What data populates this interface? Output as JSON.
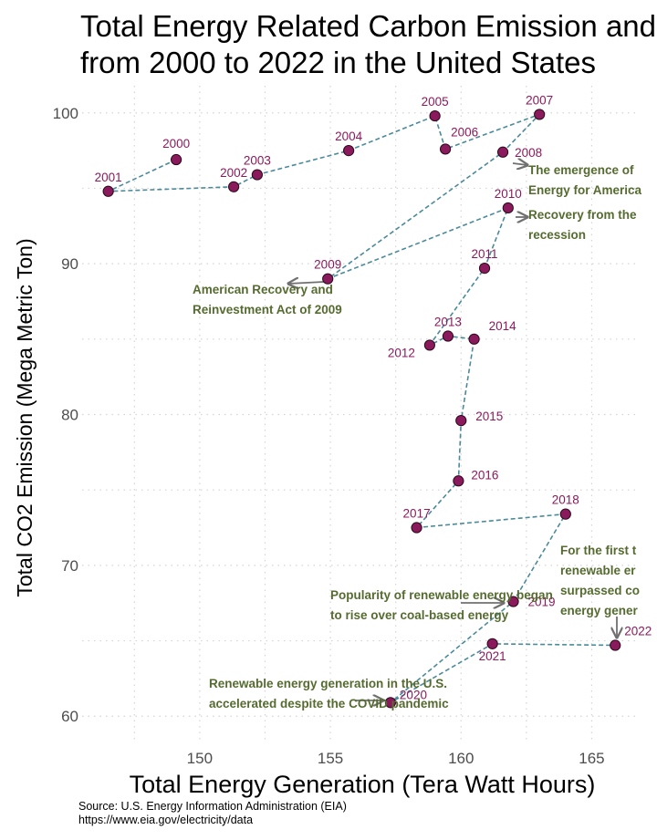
{
  "chart_data": {
    "type": "scatter",
    "title_lines": [
      "Total Energy Related Carbon Emission and Energy Generation",
      "from 2000 to 2022 in the United States"
    ],
    "xlabel": "Total Energy Generation (Tera Watt Hours)",
    "ylabel": "Total CO2 Emission (Mega Metric Ton)",
    "xlim": [
      145.5,
      166.8
    ],
    "ylim": [
      58.2,
      101.8
    ],
    "xticks": [
      150,
      155,
      160,
      165
    ],
    "yticks": [
      60,
      70,
      80,
      90,
      100
    ],
    "grid": true,
    "connected_path": true,
    "colors": {
      "point": "#8b1a5c",
      "line": "#4a8a9a",
      "annotation": "#556b2f",
      "arrow": "#707070"
    },
    "points": [
      {
        "year": "2000",
        "x": 149.1,
        "y": 96.9
      },
      {
        "year": "2001",
        "x": 146.5,
        "y": 94.8
      },
      {
        "year": "2002",
        "x": 151.3,
        "y": 95.1
      },
      {
        "year": "2003",
        "x": 152.2,
        "y": 95.9
      },
      {
        "year": "2004",
        "x": 155.7,
        "y": 97.5
      },
      {
        "year": "2005",
        "x": 159.0,
        "y": 99.8
      },
      {
        "year": "2006",
        "x": 159.4,
        "y": 97.6
      },
      {
        "year": "2007",
        "x": 163.0,
        "y": 99.9
      },
      {
        "year": "2008",
        "x": 161.6,
        "y": 97.4
      },
      {
        "year": "2009",
        "x": 154.9,
        "y": 89.0
      },
      {
        "year": "2010",
        "x": 161.8,
        "y": 93.7
      },
      {
        "year": "2011",
        "x": 160.9,
        "y": 89.7
      },
      {
        "year": "2012",
        "x": 158.8,
        "y": 84.6
      },
      {
        "year": "2013",
        "x": 159.5,
        "y": 85.2
      },
      {
        "year": "2014",
        "x": 160.5,
        "y": 85.0
      },
      {
        "year": "2015",
        "x": 160.0,
        "y": 79.6
      },
      {
        "year": "2016",
        "x": 159.9,
        "y": 75.6
      },
      {
        "year": "2017",
        "x": 158.3,
        "y": 72.5
      },
      {
        "year": "2018",
        "x": 164.0,
        "y": 73.4
      },
      {
        "year": "2019",
        "x": 162.0,
        "y": 67.6
      },
      {
        "year": "2020",
        "x": 157.3,
        "y": 60.9
      },
      {
        "year": "2021",
        "x": 161.2,
        "y": 64.8
      },
      {
        "year": "2022",
        "x": 165.9,
        "y": 64.7
      }
    ],
    "annotations": [
      {
        "lines": [
          "The emergence of",
          "Energy for America"
        ]
      },
      {
        "lines": [
          "Recovery from the",
          "recession"
        ]
      },
      {
        "lines": [
          "American Recovery and",
          "Reinvestment Act of 2009"
        ]
      },
      {
        "lines": [
          "For the first t",
          "renewable er",
          "surpassed co",
          "energy gener"
        ]
      },
      {
        "lines": [
          "Popularity of renewable energy began",
          "to rise over coal-based energy"
        ]
      },
      {
        "lines": [
          "Renewable energy generation in the U.S.",
          "accelerated despite the COVID pandemic"
        ]
      }
    ]
  },
  "source_lines": [
    "Source: U.S. Energy Information Administration (EIA)",
    "https://www.eia.gov/electricity/data"
  ]
}
